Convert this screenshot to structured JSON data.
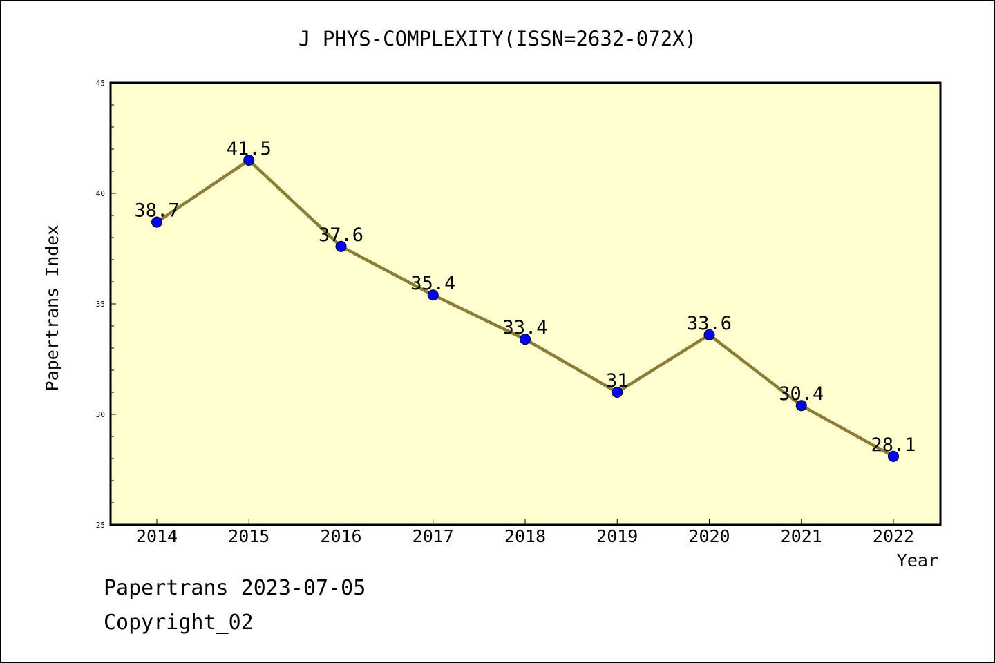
{
  "chart_data": {
    "type": "line",
    "title": "J PHYS-COMPLEXITY(ISSN=2632-072X)",
    "xlabel": "Year",
    "ylabel": "Papertrans Index",
    "categories": [
      "2014",
      "2015",
      "2016",
      "2017",
      "2018",
      "2019",
      "2020",
      "2021",
      "2022"
    ],
    "values": [
      38.7,
      41.5,
      37.6,
      35.4,
      33.4,
      31,
      33.6,
      30.4,
      28.1
    ],
    "data_labels": [
      "38.7",
      "41.5",
      "37.6",
      "35.4",
      "33.4",
      "31",
      "33.6",
      "30.4",
      "28.1"
    ],
    "ylim": [
      25,
      45
    ],
    "yticks": [
      "25",
      "30",
      "35",
      "40",
      "45"
    ],
    "grid": false,
    "legend": "none",
    "colors": {
      "plot_background": "#ffffd0",
      "line": "#8b7d35",
      "marker": "#0000ff"
    }
  },
  "footer": {
    "line1": "Papertrans 2023-07-05",
    "line2": "Copyright_02"
  }
}
